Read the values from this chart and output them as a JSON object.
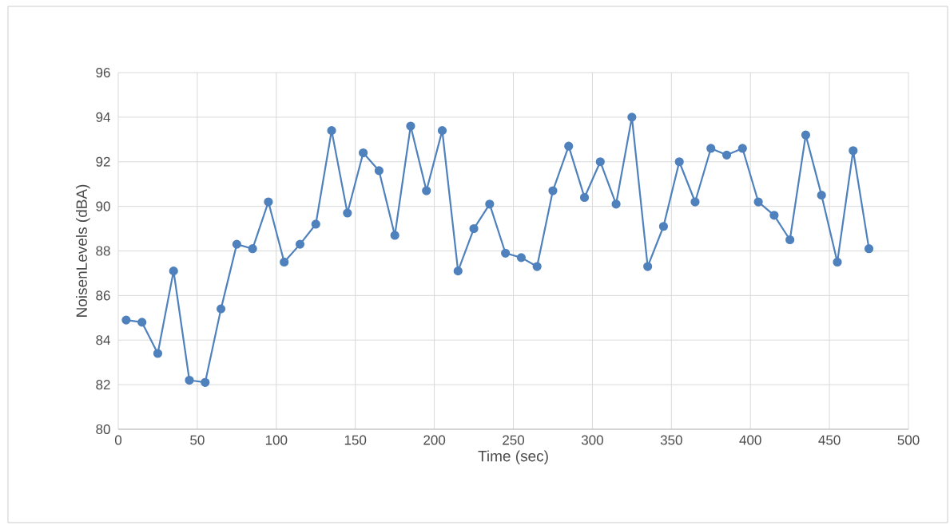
{
  "chart_data": {
    "type": "line",
    "xlabel": "Time (sec)",
    "ylabel": "NoisenLevels (dBA)",
    "x": [
      5,
      15,
      25,
      35,
      45,
      55,
      65,
      75,
      85,
      95,
      105,
      115,
      125,
      135,
      145,
      155,
      165,
      175,
      185,
      195,
      205,
      215,
      225,
      235,
      245,
      255,
      265,
      275,
      285,
      295,
      305,
      315,
      325,
      335,
      345,
      355,
      365,
      375,
      385,
      395,
      405,
      415,
      425,
      435,
      445,
      455,
      465,
      475
    ],
    "series": [
      {
        "color": "#4f81bd",
        "values": [
          84.9,
          84.8,
          83.4,
          87.1,
          82.2,
          82.1,
          85.4,
          88.3,
          88.1,
          90.2,
          87.5,
          88.3,
          89.2,
          93.4,
          89.7,
          92.4,
          91.6,
          88.7,
          93.6,
          90.7,
          93.4,
          87.1,
          89.0,
          90.1,
          87.9,
          87.7,
          87.3,
          90.7,
          92.7,
          90.4,
          92.0,
          90.1,
          94.0,
          87.3,
          89.1,
          92.0,
          90.2,
          92.6,
          92.3,
          92.6,
          90.2,
          89.6,
          88.5,
          93.2,
          90.5,
          87.5,
          92.5,
          88.1
        ]
      }
    ],
    "xlim": [
      0,
      500
    ],
    "xticks": [
      0,
      50,
      100,
      150,
      200,
      250,
      300,
      350,
      400,
      450,
      500
    ],
    "ylim": [
      80,
      96
    ],
    "yticks": [
      80,
      82,
      84,
      86,
      88,
      90,
      92,
      94,
      96
    ],
    "grid": true,
    "marker": "circle",
    "line_style": "solid"
  }
}
